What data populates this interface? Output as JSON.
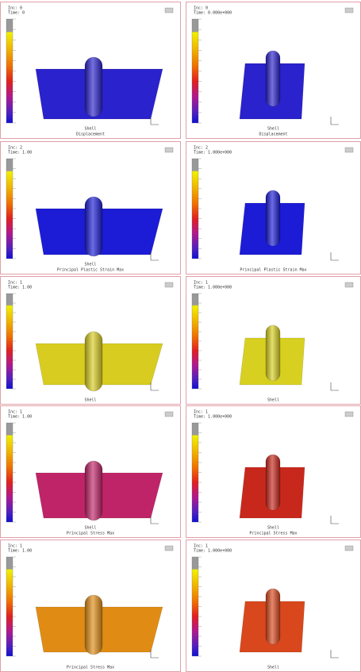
{
  "panels": [
    {
      "header": [
        "Inc: 0",
        "Time: 0"
      ],
      "caption": [
        "Shell",
        "Displacement"
      ]
    },
    {
      "header": [
        "Inc: 0",
        "Time: 0.000e+000"
      ],
      "caption": [
        "Shell",
        "Displacement"
      ]
    },
    {
      "header": [
        "Inc: 2",
        "Time: 1.00"
      ],
      "caption": [
        "Shell",
        "Principal Plastic Strain Max"
      ]
    },
    {
      "header": [
        "Inc: 2",
        "Time: 1.000e+000"
      ],
      "caption": [
        "Principal Plastic Strain Max"
      ]
    },
    {
      "header": [
        "Inc: 1",
        "Time: 1.00"
      ],
      "caption": [
        "Shell"
      ]
    },
    {
      "header": [
        "Inc: 1",
        "Time: 1.000e+000"
      ],
      "caption": [
        "Shell"
      ]
    },
    {
      "header": [
        "Inc: 1",
        "Time: 1.00"
      ],
      "caption": [
        "Shell",
        "Principal Stress Max"
      ]
    },
    {
      "header": [
        "Inc: 1",
        "Time: 1.000e+000"
      ],
      "caption": [
        "Shell",
        "Principal Stress Max"
      ]
    },
    {
      "header": [
        "Inc: 1",
        "Time: 1.00"
      ],
      "caption": [
        "Principal Stress Max"
      ]
    },
    {
      "header": [
        "Inc: 1",
        "Time: 1.000e+000"
      ],
      "caption": [
        "Shell"
      ]
    }
  ]
}
